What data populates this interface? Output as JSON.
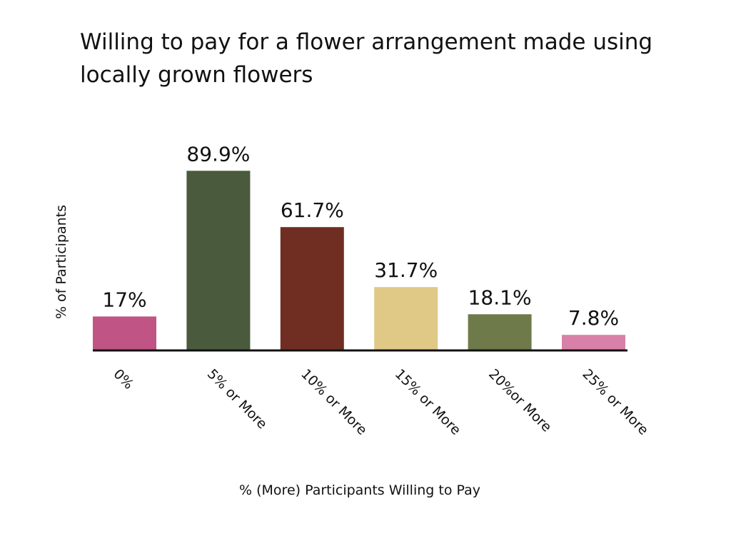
{
  "chart_data": {
    "type": "bar",
    "title": "Willing to pay for a flower arrangement made using locally grown flowers",
    "xlabel": "% (More) Participants Willing to Pay",
    "ylabel": "% of Participants",
    "categories": [
      "0%",
      "5% or More",
      "10% or More",
      "15% or More",
      "20%or More",
      "25% or More"
    ],
    "values": [
      17,
      89.9,
      61.7,
      31.7,
      18.1,
      7.8
    ],
    "value_labels": [
      "17%",
      "89.9%",
      "61.7%",
      "31.7%",
      "18.1%",
      "7.8%"
    ],
    "colors": [
      "#c05585",
      "#4a5a3c",
      "#702e23",
      "#e0c887",
      "#6e7a4a",
      "#d880a8"
    ],
    "ylim": [
      0,
      100
    ],
    "grid": false,
    "legend": "none"
  }
}
